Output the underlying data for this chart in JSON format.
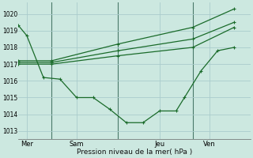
{
  "background_color": "#cce8e0",
  "grid_color": "#aacccc",
  "line_color": "#1a6b2a",
  "vline_color": "#4a7a6a",
  "title": "Pression niveau de la mer( hPa )",
  "ylim": [
    1012.5,
    1020.7
  ],
  "yticks": [
    1013,
    1014,
    1015,
    1016,
    1017,
    1018,
    1019,
    1020
  ],
  "day_labels": [
    "Mer",
    "Sam",
    "Jeu",
    "Ven"
  ],
  "day_positions": [
    0.5,
    3.5,
    8.5,
    11.5
  ],
  "vline_positions": [
    2.0,
    6.0,
    10.5
  ],
  "xlim": [
    0,
    14
  ],
  "series": [
    {
      "x": [
        0,
        0.5,
        1.5,
        2.5,
        3.5,
        4.5,
        5.5,
        6.5,
        7.5,
        8.5,
        9.5,
        10.0,
        11.0,
        12.0,
        13.0
      ],
      "y": [
        1019.3,
        1018.7,
        1016.2,
        1016.1,
        1015.0,
        1015.0,
        1014.3,
        1013.5,
        1013.5,
        1014.2,
        1014.2,
        1015.0,
        1016.6,
        1017.8,
        1018.0
      ]
    },
    {
      "x": [
        0,
        2.0,
        6.0,
        10.5,
        13.0
      ],
      "y": [
        1017.0,
        1017.0,
        1017.5,
        1018.0,
        1019.2
      ]
    },
    {
      "x": [
        0,
        2.0,
        6.0,
        10.5,
        13.0
      ],
      "y": [
        1017.1,
        1017.1,
        1017.8,
        1018.5,
        1019.5
      ]
    },
    {
      "x": [
        0,
        2.0,
        6.0,
        10.5,
        13.0
      ],
      "y": [
        1017.2,
        1017.2,
        1018.2,
        1019.2,
        1020.3
      ]
    }
  ]
}
